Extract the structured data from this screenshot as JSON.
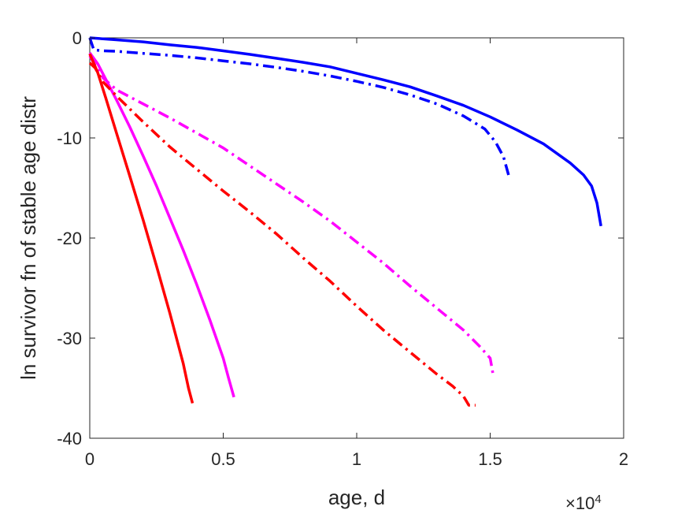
{
  "chart_data": {
    "type": "line",
    "title": "",
    "xlabel": "age, d",
    "ylabel": "ln survivor fn of stable age distr",
    "x_multiplier_label": "×10",
    "x_multiplier_exponent": "4",
    "xlim": [
      0,
      20000
    ],
    "ylim": [
      -40,
      0
    ],
    "xticks": [
      0,
      5000,
      10000,
      15000,
      20000
    ],
    "xtick_labels": [
      "0",
      "0.5",
      "1",
      "1.5",
      "2"
    ],
    "yticks": [
      -40,
      -30,
      -20,
      -10,
      0
    ],
    "ytick_labels": [
      "-40",
      "-30",
      "-20",
      "-10",
      "0"
    ],
    "grid": false,
    "legend": "none",
    "series": [
      {
        "color": "#0000ff",
        "style": "solid",
        "x": [
          0,
          1000,
          2000,
          3000,
          4000,
          5000,
          6000,
          7000,
          8000,
          9000,
          10000,
          11000,
          12000,
          13000,
          14000,
          15000,
          16000,
          17000,
          18000,
          18500,
          18800,
          19000,
          19150
        ],
        "y": [
          0,
          -0.2,
          -0.4,
          -0.7,
          -0.95,
          -1.3,
          -1.65,
          -2.05,
          -2.45,
          -2.9,
          -3.55,
          -4.2,
          -4.9,
          -5.8,
          -6.75,
          -7.9,
          -9.2,
          -10.6,
          -12.5,
          -13.7,
          -14.8,
          -16.5,
          -18.8
        ]
      },
      {
        "color": "#0000ff",
        "style": "dashdot",
        "x": [
          0,
          150,
          500,
          1000,
          2000,
          3000,
          4000,
          5000,
          6000,
          7000,
          8000,
          9000,
          10000,
          11000,
          12000,
          13000,
          14000,
          14800,
          15200,
          15500,
          15700
        ],
        "y": [
          0,
          -1.2,
          -1.3,
          -1.35,
          -1.55,
          -1.75,
          -2.0,
          -2.3,
          -2.6,
          -2.95,
          -3.35,
          -3.8,
          -4.35,
          -4.95,
          -5.7,
          -6.6,
          -7.8,
          -9.1,
          -10.4,
          -11.9,
          -13.8
        ]
      },
      {
        "color": "#ff00ff",
        "style": "solid",
        "x": [
          0,
          300,
          1000,
          1500,
          2000,
          2500,
          3000,
          3500,
          4000,
          4500,
          5000,
          5200,
          5400
        ],
        "y": [
          -1.5,
          -2.6,
          -6.2,
          -8.9,
          -11.8,
          -14.8,
          -18.0,
          -21.2,
          -24.6,
          -28.2,
          -32.0,
          -34.0,
          -35.9
        ]
      },
      {
        "color": "#ff00ff",
        "style": "dashdot",
        "x": [
          0,
          300,
          500,
          1000,
          2000,
          3000,
          4000,
          5000,
          6000,
          7000,
          8000,
          9000,
          10000,
          11000,
          12000,
          13000,
          14000,
          14600,
          15000,
          15100
        ],
        "y": [
          -1.8,
          -3.2,
          -4.0,
          -5.2,
          -6.6,
          -8.0,
          -9.5,
          -11.0,
          -12.8,
          -14.6,
          -16.4,
          -18.3,
          -20.4,
          -22.5,
          -24.8,
          -27.0,
          -29.2,
          -30.8,
          -32.0,
          -33.5
        ]
      },
      {
        "color": "#ff0000",
        "style": "solid",
        "x": [
          0,
          300,
          600,
          1000,
          1500,
          2000,
          2500,
          3000,
          3500,
          3700,
          3850
        ],
        "y": [
          -1.6,
          -3.5,
          -6.0,
          -9.5,
          -13.8,
          -18.2,
          -22.8,
          -27.5,
          -32.5,
          -35.0,
          -36.5
        ]
      },
      {
        "color": "#ff0000",
        "style": "dashdot",
        "x": [
          0,
          200,
          500,
          1000,
          2000,
          3000,
          4000,
          5000,
          6000,
          7000,
          8000,
          9000,
          10000,
          11000,
          12000,
          13000,
          13600,
          14000,
          14200,
          14450
        ],
        "y": [
          -2.5,
          -3.0,
          -4.4,
          -5.8,
          -8.4,
          -10.9,
          -13.1,
          -15.3,
          -17.4,
          -19.6,
          -22.0,
          -24.3,
          -26.8,
          -29.2,
          -31.4,
          -33.6,
          -34.8,
          -35.8,
          -36.7,
          -36.7
        ]
      }
    ]
  }
}
